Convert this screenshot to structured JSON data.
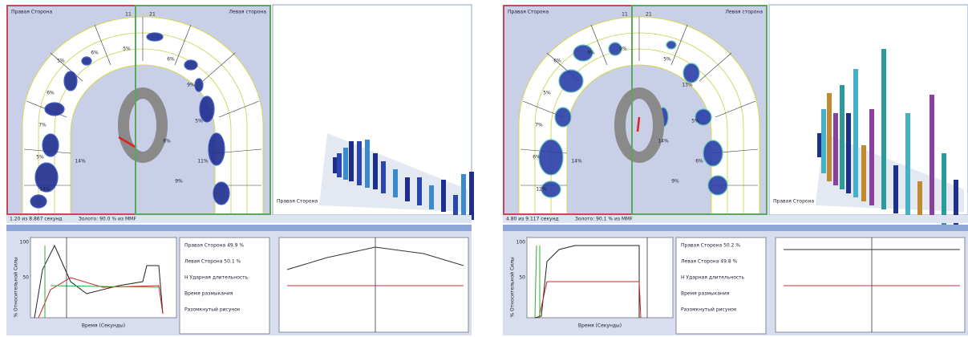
{
  "panels": [
    {
      "arch": {
        "right_label": "Правая Сторона",
        "left_label": "Левая сторона",
        "teeth": [
          "11",
          "21"
        ],
        "percents": [
          "5%",
          "6%",
          "7%",
          "5%",
          "14%",
          "14%",
          "6%",
          "5%",
          "6%",
          "9%",
          "5%",
          "11%",
          "9%",
          "8%"
        ]
      },
      "view3d_label": "Правая Сторона",
      "status": [
        "1.20 из 8.867 секунд",
        "Золото: 90.0 % из MMF"
      ],
      "graph": {
        "y_label": "% Относительной Силы",
        "x_label": "Время (Секунды)",
        "yticks": [
          "100",
          "50"
        ]
      },
      "legend": [
        "Правая Сторона 49.9 %",
        "Левая Сторона 50.1 %",
        "Н Ударная длительность",
        "Время размыкания",
        "Разомкнутый рисунок"
      ]
    },
    {
      "arch": {
        "right_label": "Правая Сторона",
        "left_label": "Левая сторона",
        "teeth": [
          "11",
          "21"
        ],
        "percents": [
          "6%",
          "5%",
          "7%",
          "6%",
          "12%",
          "14%",
          "9%",
          "9%",
          "5%",
          "13%",
          "5%",
          "6%",
          "9%",
          "14%"
        ]
      },
      "view3d_label": "Правая Сторона",
      "status": [
        "4.80 из 9.117 секунд",
        "Золото: 90.1 % из MMF"
      ],
      "graph": {
        "y_label": "% Относительной Силы",
        "x_label": "Время (Секунды)",
        "yticks": [
          "100",
          "50"
        ]
      },
      "legend": [
        "Правая Сторона 50.2 %",
        "Левая Сторона 49.8 %",
        "Н Ударная длительность",
        "Время размыкания",
        "Разомкнутый рисунок"
      ]
    }
  ]
}
